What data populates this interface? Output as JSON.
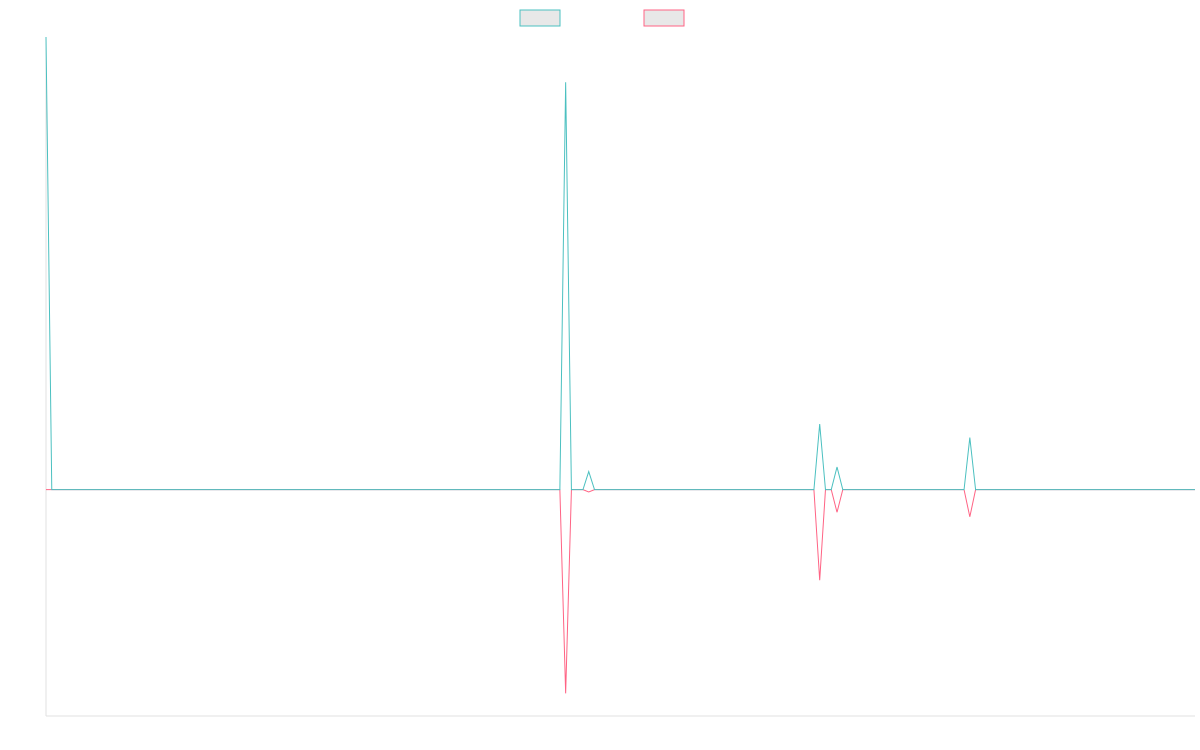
{
  "chart_data": {
    "type": "line",
    "title": "",
    "xlabel": "",
    "ylabel": "",
    "x_count": 200,
    "ylim": [
      -100,
      200
    ],
    "grid": false,
    "legend_position": "top-center",
    "series": [
      {
        "color": "#4bc0c0",
        "values": {
          "0": 200,
          "1": 0,
          "90": 180,
          "94": 8,
          "134": 29,
          "137": 10,
          "160": 23
        }
      },
      {
        "color": "#ff6384",
        "values": {
          "0": 0,
          "1": 0,
          "90": -90,
          "94": -1,
          "134": -40,
          "137": -10,
          "160": -12
        }
      }
    ]
  }
}
